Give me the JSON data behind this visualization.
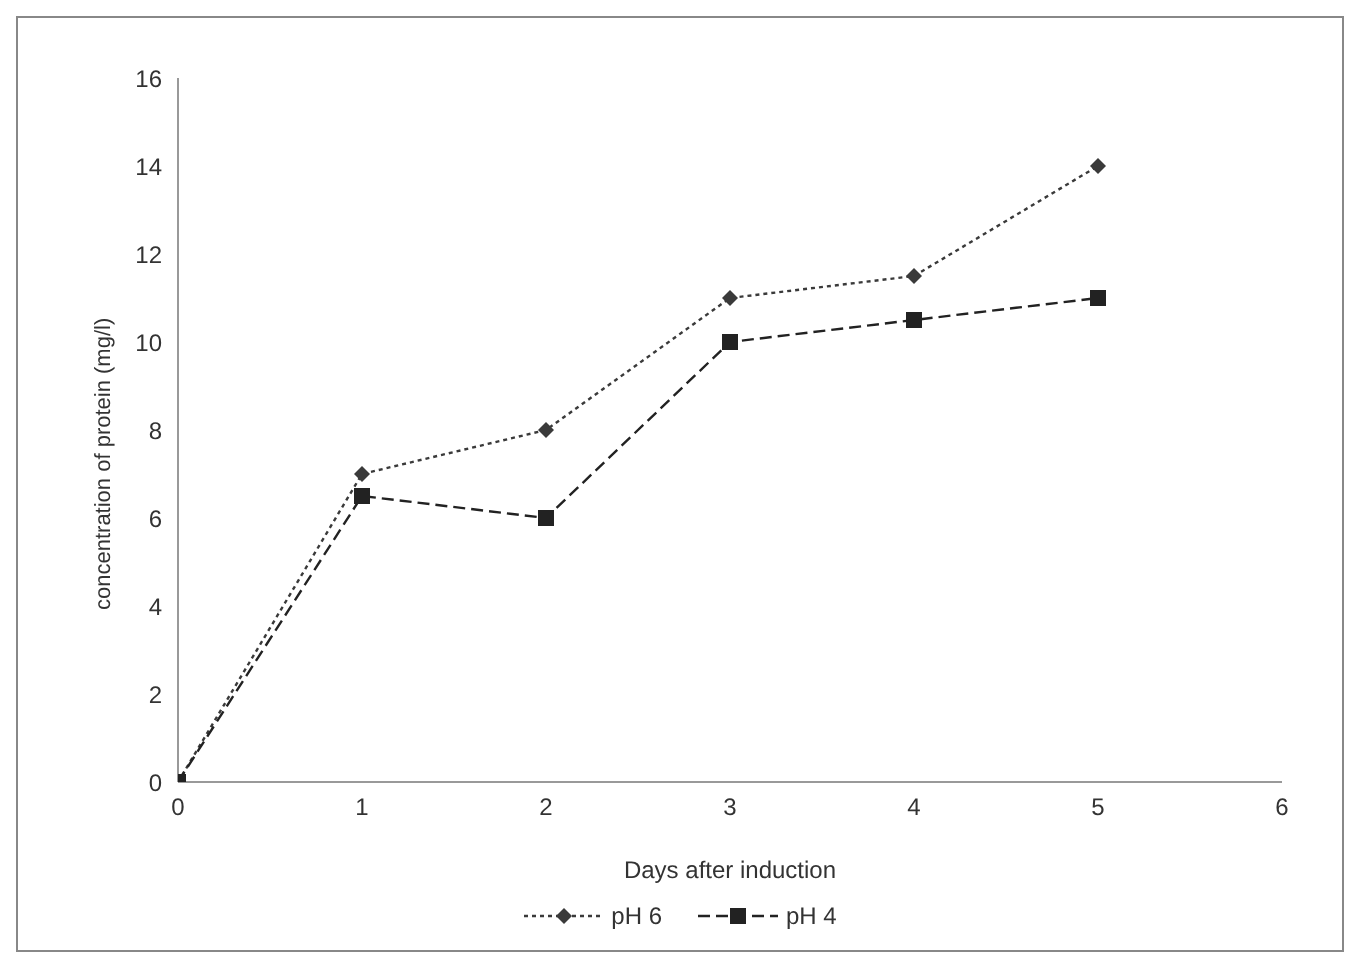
{
  "chart_data": {
    "type": "line",
    "xlabel": "Days after induction",
    "ylabel": "concentration of protein (mg/l)",
    "x": [
      0,
      1,
      2,
      3,
      4,
      5
    ],
    "series": [
      {
        "name": "pH 6",
        "color": "#3a3a3a",
        "values": [
          0,
          7,
          8,
          11,
          11.5,
          14
        ],
        "marker": "diamond",
        "line_style": "dotted"
      },
      {
        "name": "pH 4",
        "color": "#222222",
        "values": [
          0,
          6.5,
          6,
          10,
          10.5,
          11
        ],
        "marker": "square",
        "line_style": "dashed"
      }
    ],
    "xlim": [
      0,
      6
    ],
    "xticks": [
      0,
      1,
      2,
      3,
      4,
      5,
      6
    ],
    "ylim": [
      0,
      16
    ],
    "yticks": [
      0,
      2,
      4,
      6,
      8,
      10,
      12,
      14,
      16
    ],
    "grid": false,
    "legend": "bottom"
  }
}
